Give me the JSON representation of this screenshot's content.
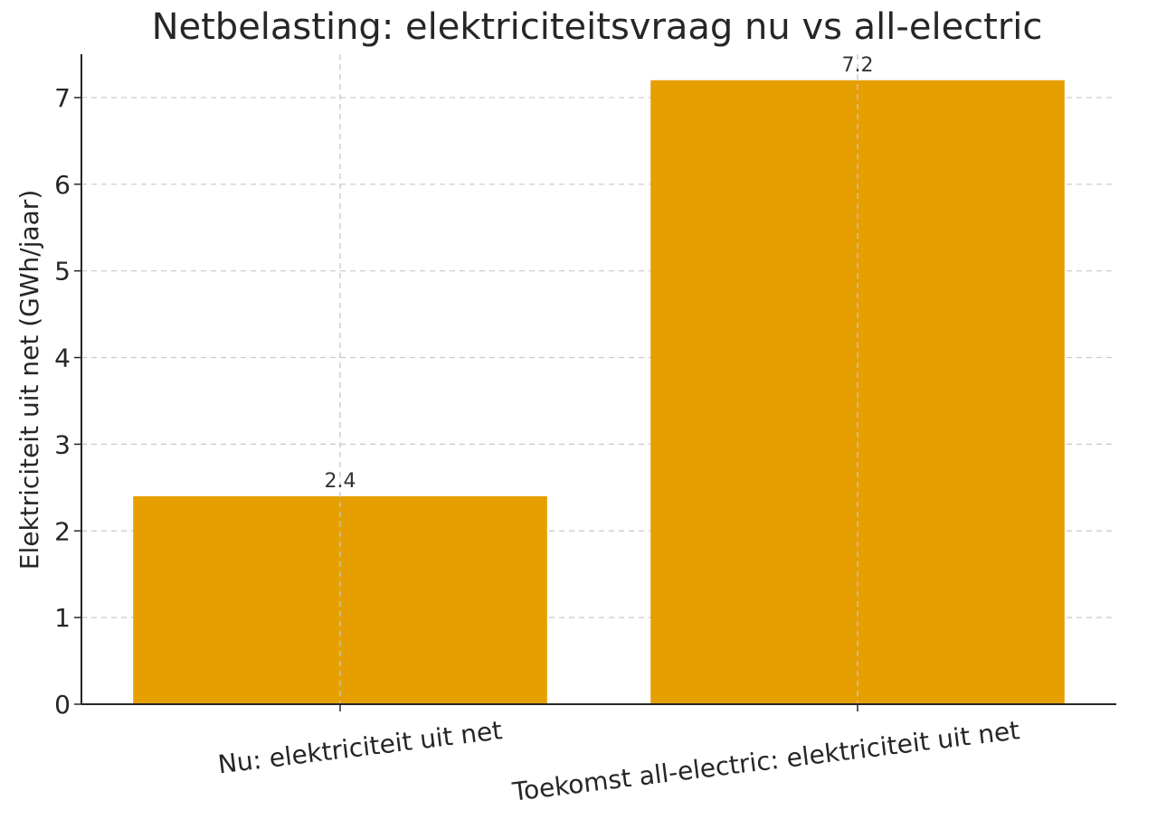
{
  "chart_data": {
    "type": "bar",
    "title": "Netbelasting: elektriciteitsvraag nu vs all-electric",
    "xlabel": "",
    "ylabel": "Elektriciteit uit net (GWh/jaar)",
    "categories": [
      "Nu: elektriciteit uit net",
      "Toekomst all-electric: elektriciteit uit net"
    ],
    "values": [
      2.4,
      7.2
    ],
    "data_labels": [
      "2.4",
      "7.2"
    ],
    "ylim": [
      0,
      7.5
    ],
    "yticks": [
      0,
      1,
      2,
      3,
      4,
      5,
      6,
      7
    ],
    "grid": true,
    "bar_color": "#E69F00"
  }
}
